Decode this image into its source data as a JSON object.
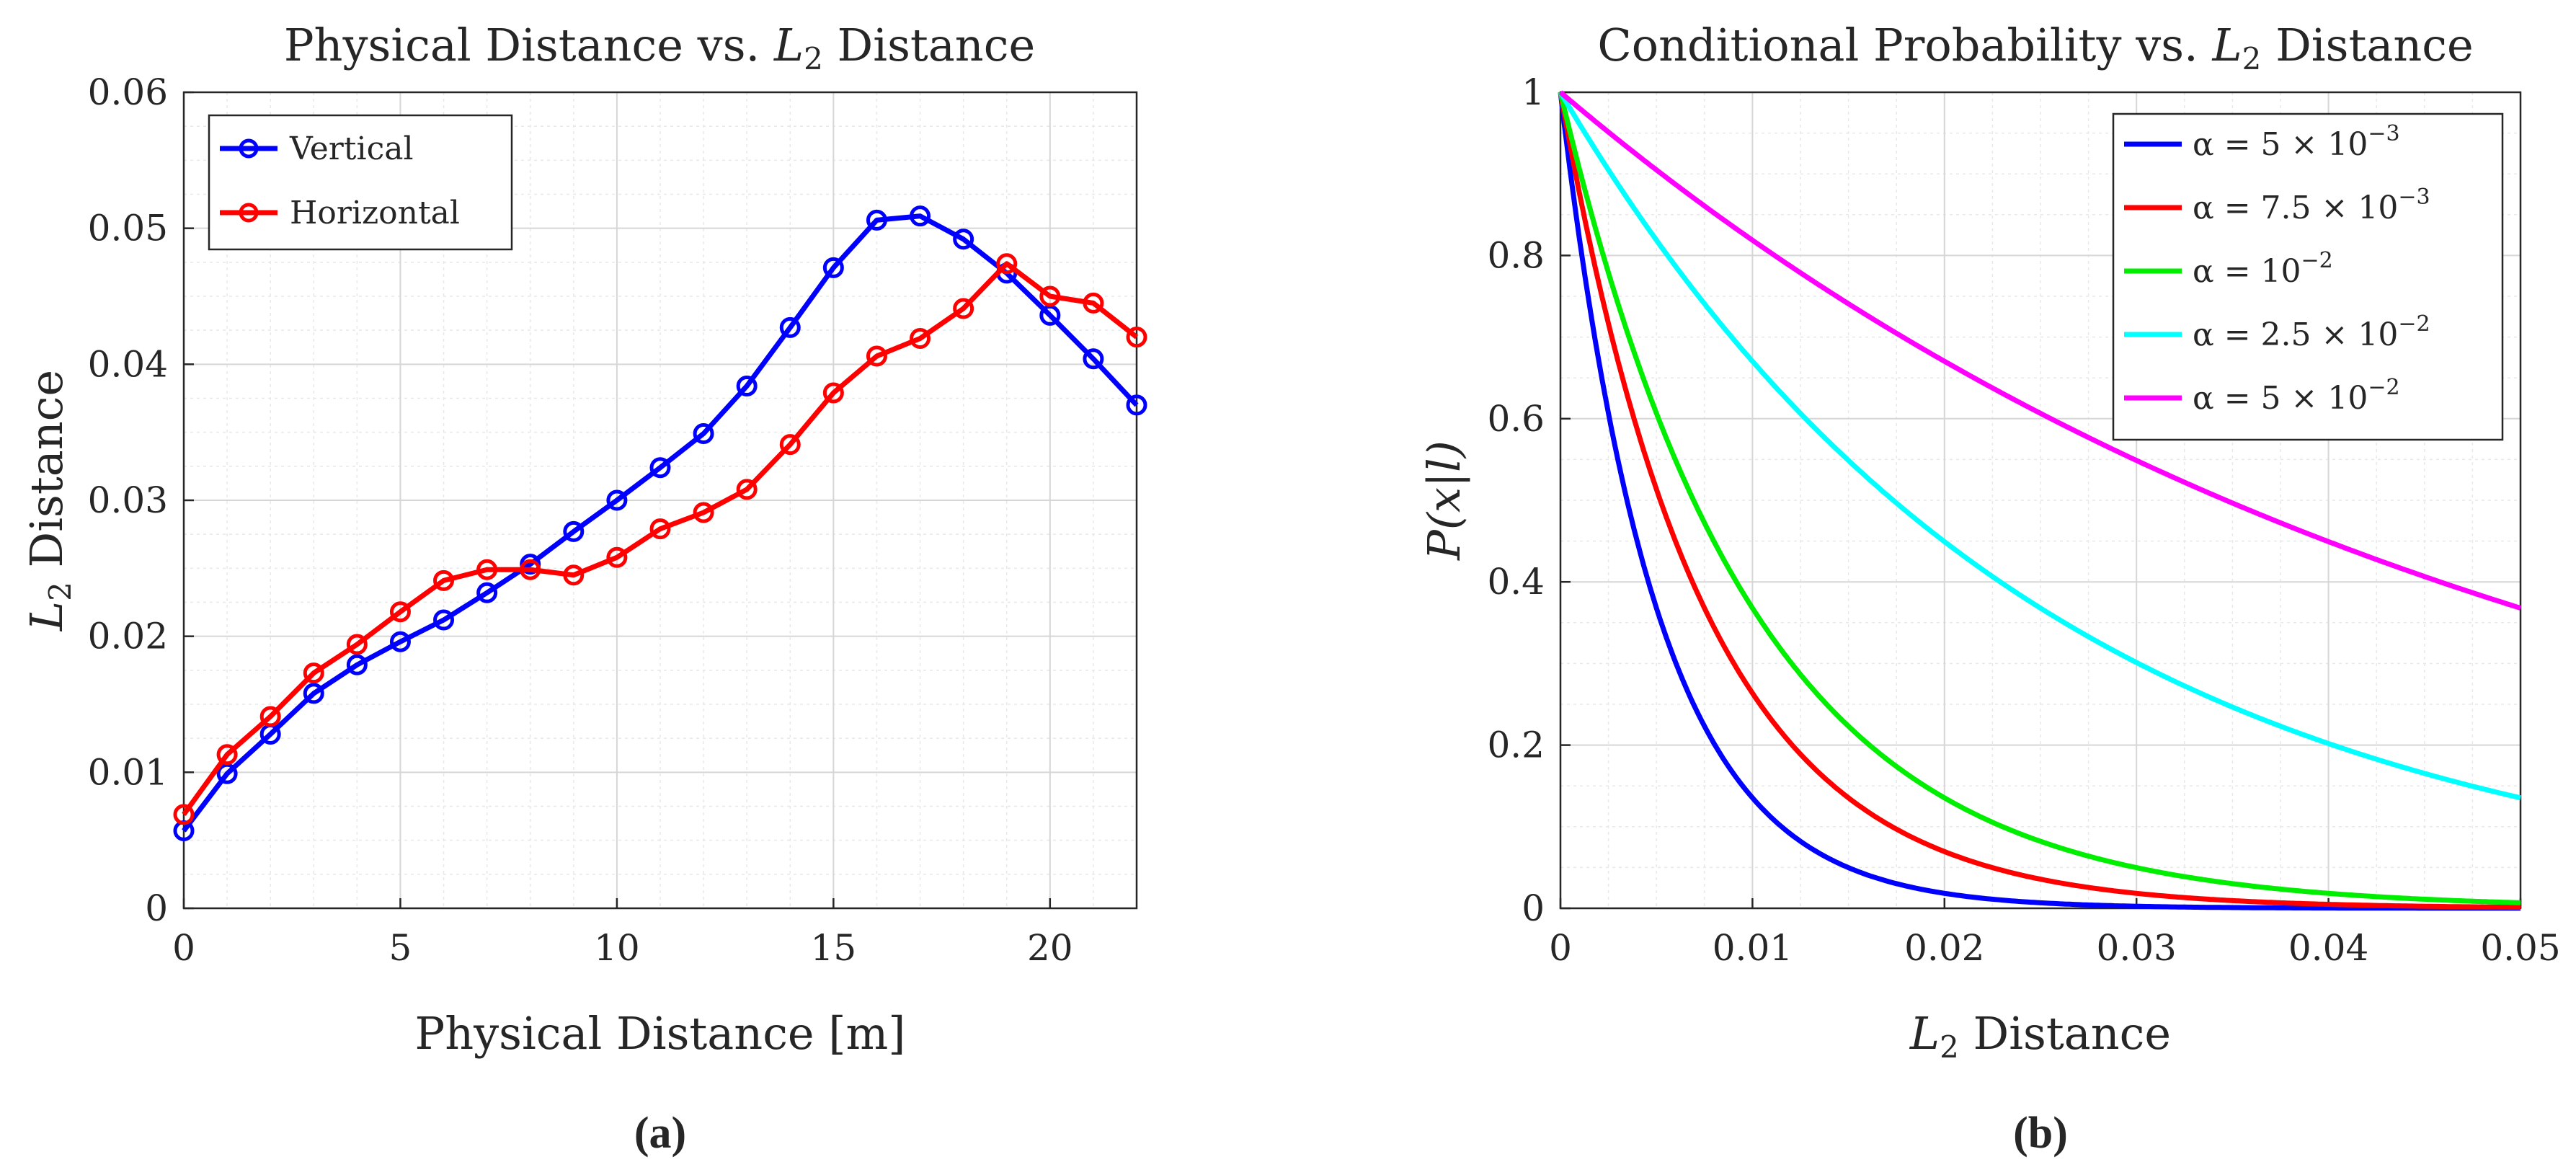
{
  "chart_data": [
    {
      "type": "line",
      "title_main": "Physical Distance vs. ",
      "title_math": "L",
      "title_sub": "2",
      "title_end": " Distance",
      "xlabel": "Physical Distance [m]",
      "ylabel_math": "L",
      "ylabel_sub": "2",
      "ylabel_end": " Distance",
      "xlim": [
        0,
        22
      ],
      "ylim": [
        0,
        0.06
      ],
      "xticks": [
        0,
        5,
        10,
        15,
        20
      ],
      "xtick_labels": [
        "0",
        "5",
        "10",
        "15",
        "20"
      ],
      "yticks": [
        0,
        0.01,
        0.02,
        0.03,
        0.04,
        0.05,
        0.06
      ],
      "ytick_labels": [
        "0",
        "0.01",
        "0.02",
        "0.03",
        "0.04",
        "0.05",
        "0.06"
      ],
      "grid": true,
      "legend_location": "top-left",
      "marker": "circle",
      "x": [
        0,
        1,
        2,
        3,
        4,
        5,
        6,
        7,
        8,
        9,
        10,
        11,
        12,
        13,
        14,
        15,
        16,
        17,
        18,
        19,
        20,
        21,
        22
      ],
      "series": [
        {
          "name": "Vertical",
          "color": "#0000ff",
          "values": [
            0.0057,
            0.0099,
            0.0128,
            0.0158,
            0.0179,
            0.0196,
            0.0212,
            0.0232,
            0.0253,
            0.0277,
            0.03,
            0.0324,
            0.0349,
            0.0384,
            0.0427,
            0.0471,
            0.0506,
            0.0509,
            0.0492,
            0.0467,
            0.0436,
            0.0404,
            0.037
          ]
        },
        {
          "name": "Horizontal",
          "color": "#ff0000",
          "values": [
            0.0069,
            0.0113,
            0.0141,
            0.0173,
            0.0194,
            0.0218,
            0.0241,
            0.0249,
            0.0249,
            0.0245,
            0.0258,
            0.0279,
            0.0291,
            0.0308,
            0.0341,
            0.0379,
            0.0406,
            0.0419,
            0.0441,
            0.0474,
            0.045,
            0.0445,
            0.042
          ]
        }
      ],
      "caption": "(a)"
    },
    {
      "type": "line",
      "title_main": "Conditional Probability vs. ",
      "title_math": "L",
      "title_sub": "2",
      "title_end": " Distance",
      "xlabel_math": "L",
      "xlabel_sub": "2",
      "xlabel_end": " Distance",
      "ylabel": "P(x|l)",
      "xlim": [
        0,
        0.05
      ],
      "ylim": [
        0,
        1
      ],
      "xticks": [
        0,
        0.01,
        0.02,
        0.03,
        0.04,
        0.05
      ],
      "xtick_labels": [
        "0",
        "0.01",
        "0.02",
        "0.03",
        "0.04",
        "0.05"
      ],
      "yticks": [
        0,
        0.2,
        0.4,
        0.6,
        0.8,
        1
      ],
      "ytick_labels": [
        "0",
        "0.2",
        "0.4",
        "0.6",
        "0.8",
        "1"
      ],
      "grid": true,
      "legend_location": "top-right",
      "function": "P = exp(-x / alpha)",
      "series": [
        {
          "name": "α = 5 × 10",
          "exp": "−3",
          "alpha": 0.005,
          "color": "#0000ff"
        },
        {
          "name": "α = 7.5 × 10",
          "exp": "−3",
          "alpha": 0.0075,
          "color": "#ff0000"
        },
        {
          "name": "α = 10",
          "exp": "−2",
          "alpha": 0.01,
          "color": "#00ee00"
        },
        {
          "name": "α = 2.5 × 10",
          "exp": "−2",
          "alpha": 0.025,
          "color": "#00ffff"
        },
        {
          "name": "α = 5 × 10",
          "exp": "−2",
          "alpha": 0.05,
          "color": "#ff00ff"
        }
      ],
      "caption": "(b)"
    }
  ]
}
